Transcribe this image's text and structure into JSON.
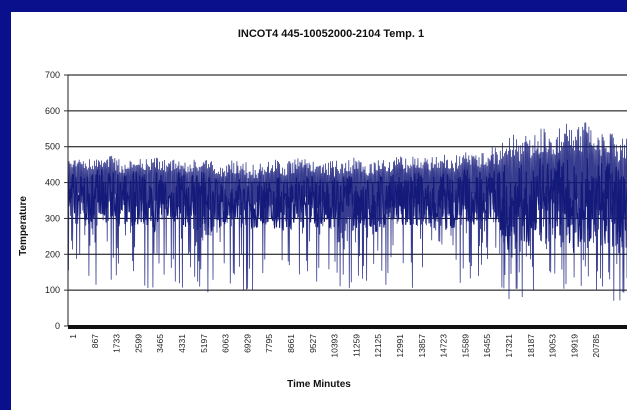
{
  "colors": {
    "background": "#0a0f8c",
    "panel": "#ffffff",
    "series": "#141a7a",
    "grid": "#000000"
  },
  "chart_data": {
    "type": "line",
    "title": "INCOT4 445-10052000-2104  Temp. 1",
    "xlabel": "Time Minutes",
    "ylabel": "Temperature",
    "ylim": [
      0,
      700
    ],
    "yticks": [
      0,
      100,
      200,
      300,
      400,
      500,
      600,
      700
    ],
    "xticks": [
      "1",
      "867",
      "1733",
      "2599",
      "3465",
      "4331",
      "5197",
      "6063",
      "6929",
      "7795",
      "8661",
      "9527",
      "10393",
      "11259",
      "12125",
      "12991",
      "13857",
      "14723",
      "15589",
      "16455",
      "17321",
      "18187",
      "19053",
      "19919",
      "20785"
    ],
    "xlim": [
      1,
      22000
    ],
    "grid": true,
    "legend": "none",
    "series": [
      {
        "x": [
          1,
          400,
          867,
          1300,
          1733,
          2150,
          2599,
          3000,
          3465,
          3900,
          4331,
          4750,
          5197,
          5600,
          6063,
          6500,
          6929,
          7350,
          7795,
          8200,
          8661,
          9100,
          9527,
          9950,
          10393,
          10800,
          11259,
          11700,
          12125,
          12550,
          12991,
          13400,
          13857,
          14300,
          14723,
          15150,
          15589,
          16000,
          16455,
          16900,
          17321,
          17750,
          18187,
          18600,
          19053,
          19500,
          19919,
          20350,
          20785,
          21200,
          21650,
          22000
        ],
        "upper": [
          480,
          470,
          465,
          470,
          475,
          460,
          470,
          465,
          470,
          462,
          470,
          460,
          470,
          465,
          440,
          470,
          460,
          450,
          460,
          465,
          460,
          470,
          465,
          470,
          460,
          465,
          470,
          460,
          470,
          465,
          480,
          470,
          475,
          470,
          480,
          470,
          490,
          480,
          490,
          510,
          550,
          520,
          540,
          560,
          540,
          570,
          550,
          575,
          540,
          555,
          520,
          530
        ],
        "lower": [
          120,
          150,
          90,
          100,
          110,
          95,
          120,
          100,
          95,
          110,
          100,
          105,
          90,
          80,
          110,
          120,
          95,
          100,
          110,
          100,
          90,
          105,
          110,
          95,
          100,
          110,
          100,
          95,
          90,
          110,
          100,
          95,
          110,
          100,
          90,
          95,
          100,
          110,
          120,
          90,
          60,
          80,
          70,
          80,
          90,
          100,
          60,
          80,
          70,
          80,
          60,
          70
        ],
        "core_upper": [
          440,
          430,
          430,
          440,
          430,
          420,
          440,
          430,
          430,
          420,
          430,
          420,
          430,
          430,
          400,
          420,
          410,
          400,
          420,
          420,
          410,
          420,
          420,
          420,
          410,
          420,
          420,
          410,
          420,
          420,
          430,
          420,
          430,
          420,
          430,
          420,
          440,
          430,
          440,
          440,
          460,
          450,
          460,
          470,
          460,
          470,
          460,
          470,
          460,
          460,
          450,
          460
        ],
        "core_lower": [
          280,
          300,
          270,
          280,
          290,
          270,
          280,
          270,
          260,
          270,
          280,
          270,
          260,
          250,
          280,
          290,
          270,
          270,
          280,
          270,
          260,
          270,
          280,
          270,
          270,
          280,
          270,
          270,
          260,
          280,
          270,
          270,
          280,
          270,
          260,
          270,
          280,
          280,
          290,
          270,
          200,
          230,
          220,
          230,
          240,
          250,
          200,
          230,
          220,
          230,
          200,
          220
        ]
      }
    ]
  }
}
